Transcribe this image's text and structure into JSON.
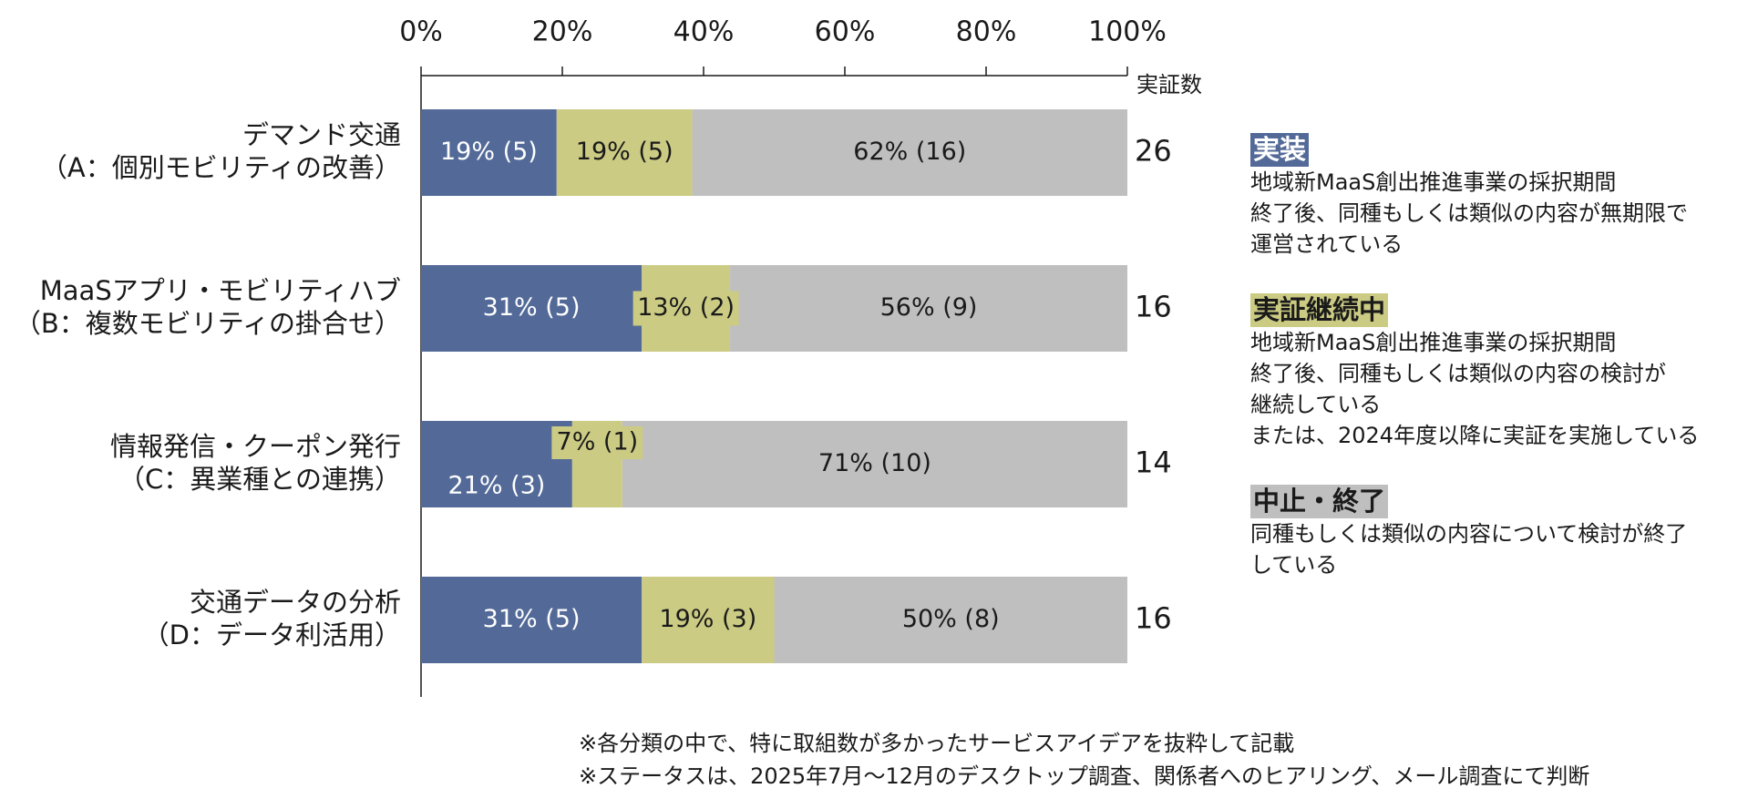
{
  "chart_data": {
    "type": "bar",
    "orientation": "horizontal",
    "stacked": true,
    "xlim": [
      0,
      100
    ],
    "x_ticks": [
      "0%",
      "20%",
      "40%",
      "60%",
      "80%",
      "100%"
    ],
    "count_header": "実証数",
    "categories": [
      {
        "line1": "デマンド交通",
        "line2": "（A：個別モビリティの改善）"
      },
      {
        "line1": "MaaSアプリ・モビリティハブ",
        "line2": "（B：複数モビリティの掛合せ）"
      },
      {
        "line1": "情報発信・クーポン発行",
        "line2": "（C：異業種との連携）"
      },
      {
        "line1": "交通データの分析",
        "line2": "（D：データ利活用）"
      }
    ],
    "series": [
      {
        "name": "実装",
        "color": "#536a98",
        "text_color": "#ffffff",
        "values": [
          19.2,
          31.25,
          21.4,
          31.25
        ],
        "labels": [
          "19% (5)",
          "31% (5)",
          "21% (3)",
          "31% (5)"
        ]
      },
      {
        "name": "実証継続中",
        "color": "#cbcb84",
        "text_color": "#1a1a1a",
        "values": [
          19.2,
          12.5,
          7.1,
          18.75
        ],
        "labels": [
          "19% (5)",
          "13% (2)",
          "7% (1)",
          "19% (3)"
        ]
      },
      {
        "name": "中止・終了",
        "color": "#bfbfbf",
        "text_color": "#1a1a1a",
        "values": [
          61.6,
          56.25,
          71.5,
          50.0
        ],
        "labels": [
          "62% (16)",
          "56% (9)",
          "71% (10)",
          "50% (8)"
        ]
      }
    ],
    "counts": [
      "26",
      "16",
      "14",
      "16"
    ]
  },
  "legend": {
    "jisso": {
      "title": "実装",
      "color": "#536a98",
      "title_color": "#ffffff",
      "lines": [
        "地域新MaaS創出推進事業の採択期間",
        "終了後、同種もしくは類似の内容が無期限で",
        "運営されている"
      ]
    },
    "keizoku": {
      "title": "実証継続中",
      "color": "#cbcb84",
      "title_color": "#1a1a1a",
      "lines": [
        "地域新MaaS創出推進事業の採択期間",
        "終了後、同種もしくは類似の内容の検討が",
        "継続している",
        "または、2024年度以降に実証を実施している"
      ]
    },
    "chushi": {
      "title": "中止・終了",
      "color": "#bfbfbf",
      "title_color": "#1a1a1a",
      "lines": [
        "同種もしくは類似の内容について検討が終了",
        "している"
      ]
    }
  },
  "notes": [
    "※各分類の中で、特に取組数が多かったサービスアイデアを抜粋して記載",
    "※ステータスは、2025年7月～12月のデスクトップ調査、関係者へのヒアリング、メール調査にて判断"
  ]
}
